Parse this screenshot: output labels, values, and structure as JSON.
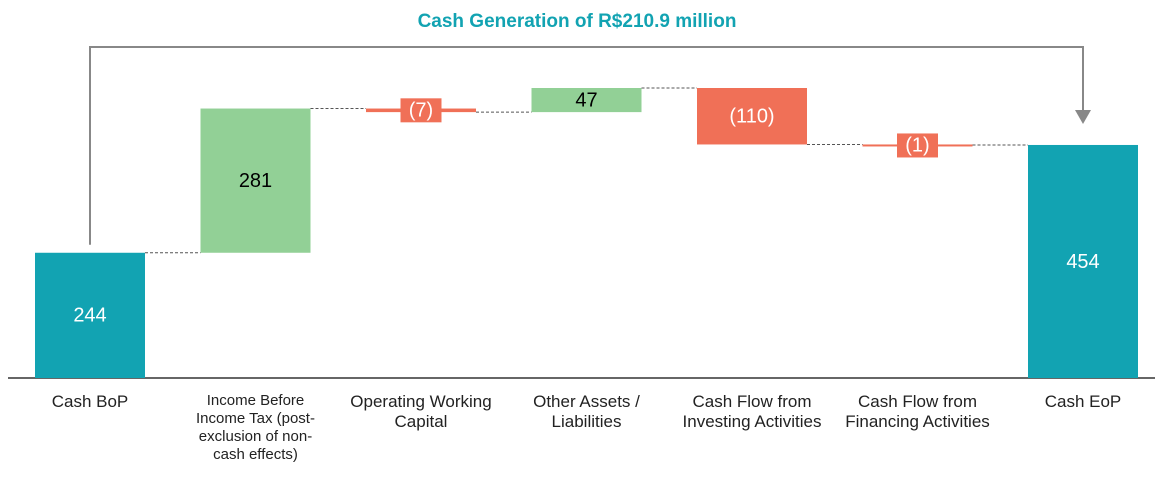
{
  "chart_data": {
    "type": "waterfall",
    "title": "Cash Generation of R$210.9 million",
    "categories": [
      "Cash BoP",
      "Income Before Income Tax (post-exclusion of non-cash effects)",
      "Operating Working Capital",
      "Other Assets / Liabilities",
      "Cash Flow from Investing Activities",
      "Cash Flow from Financing Activities",
      "Cash EoP"
    ],
    "values": [
      244,
      281,
      -7,
      47,
      -110,
      -1,
      454
    ],
    "value_labels": [
      "244",
      "281",
      "(7)",
      "47",
      "(110)",
      "(1)",
      "454"
    ],
    "colors": [
      "#12a3b2",
      "#92d096",
      "#f07057",
      "#92d096",
      "#f07057",
      "#f07057",
      "#12a3b2"
    ],
    "value_label_colors": [
      "#ffffff",
      "#000000",
      "#ffffff",
      "#000000",
      "#ffffff",
      "#ffffff",
      "#ffffff"
    ],
    "title_color": "#12a3b2"
  }
}
